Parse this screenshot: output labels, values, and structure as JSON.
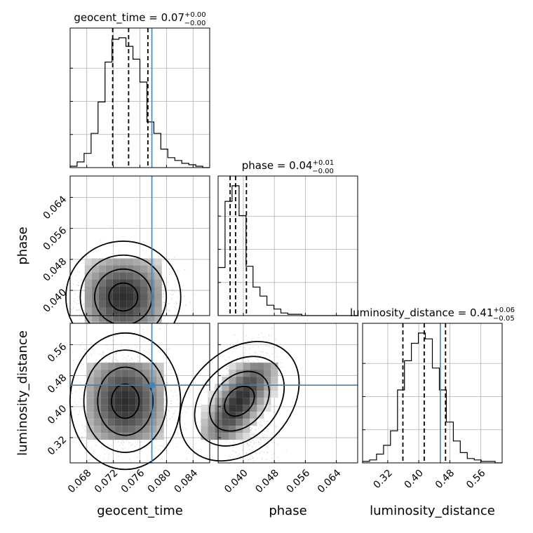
{
  "chart_data": {
    "type": "corner",
    "parameters": [
      "geocent_time",
      "phase",
      "luminosity_distance"
    ],
    "titles": [
      {
        "param": "geocent_time",
        "median": "0.07",
        "plus": "+0.00",
        "minus": "−0.00"
      },
      {
        "param": "phase",
        "median": "0.04",
        "plus": "+0.01",
        "minus": "−0.00"
      },
      {
        "param": "luminosity_distance",
        "median": "0.41",
        "plus": "+0.06",
        "minus": "−0.05"
      }
    ],
    "ranges": {
      "geocent_time": [
        0.0655,
        0.0865
      ],
      "phase": [
        0.0335,
        0.0695
      ],
      "luminosity_distance": [
        0.255,
        0.615
      ]
    },
    "ticks": {
      "geocent_time": [
        "0.068",
        "0.072",
        "0.076",
        "0.080",
        "0.084"
      ],
      "phase": [
        "0.040",
        "0.048",
        "0.056",
        "0.064"
      ],
      "luminosity_distance": [
        "0.32",
        "0.40",
        "0.48",
        "0.56"
      ]
    },
    "truths": {
      "geocent_time": 0.0778,
      "phase": null,
      "luminosity_distance": 0.4555
    },
    "quantiles": {
      "geocent_time": [
        0.0719,
        0.0743,
        0.0772
      ],
      "phase": [
        0.0366,
        0.038,
        0.0408
      ],
      "luminosity_distance": [
        0.359,
        0.414,
        0.469
      ]
    },
    "histograms": {
      "geocent_time": {
        "edges_start": 0.0655,
        "bin_width": 0.00105,
        "counts": [
          1,
          4,
          10,
          24,
          46,
          74,
          90,
          91,
          85,
          76,
          60,
          32,
          24,
          13,
          7,
          5,
          3,
          2,
          1,
          0
        ]
      },
      "phase": {
        "edges_start": 0.0335,
        "bin_width": 0.0018,
        "counts": [
          37,
          88,
          100,
          77,
          38,
          22,
          15,
          8,
          5,
          2,
          1,
          1,
          0,
          0,
          0,
          0,
          0,
          0,
          0,
          0
        ]
      },
      "luminosity_distance": {
        "edges_start": 0.255,
        "bin_width": 0.018,
        "counts": [
          1,
          2,
          6,
          12,
          22,
          50,
          70,
          82,
          89,
          85,
          65,
          50,
          28,
          15,
          7,
          3,
          2,
          1,
          1,
          0
        ]
      }
    }
  }
}
